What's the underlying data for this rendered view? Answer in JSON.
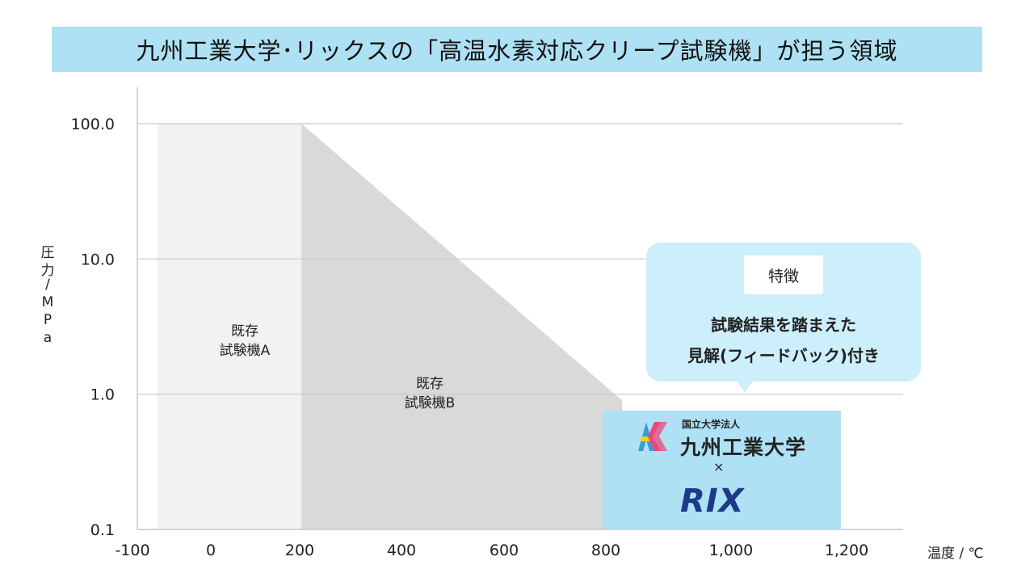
{
  "title": "九州工業大学･リックスの「高温水素対応クリープ試験機」が担う領域",
  "y_axis_label_chars": [
    "圧",
    "力",
    "/",
    "M",
    "P",
    "a"
  ],
  "x_axis_label": "温度 / ℃",
  "chart_data": {
    "type": "area",
    "title": "九州工業大学･リックスの「高温水素対応クリープ試験機」が担う領域",
    "xlabel": "温度 / ℃",
    "ylabel": "圧力/MPa",
    "xlim": [
      -100,
      1200
    ],
    "ylim": [
      0.1,
      100
    ],
    "y_scale": "log",
    "x_ticks": [
      -100,
      0,
      200,
      400,
      600,
      800,
      1000,
      1200
    ],
    "x_tick_labels": [
      "-100",
      "0",
      "200",
      "400",
      "600",
      "800",
      "1,000",
      "1,200"
    ],
    "y_ticks": [
      0.1,
      1,
      10,
      100
    ],
    "y_tick_labels": [
      "0.1",
      "1.0",
      "10.0",
      "100.0"
    ],
    "grid": "horizontal",
    "regions": [
      {
        "name": "既存試験機A",
        "label_lines": [
          "既存",
          "試験機A"
        ],
        "color": "#f2f2f2",
        "polygon": [
          [
            -40,
            0.1
          ],
          [
            200,
            0.1
          ],
          [
            200,
            100
          ],
          [
            -40,
            100
          ]
        ]
      },
      {
        "name": "既存試験機B",
        "label_lines": [
          "既存",
          "試験機B"
        ],
        "color": "#d9d9d9",
        "polygon": [
          [
            200,
            0.1
          ],
          [
            800,
            0.1
          ],
          [
            800,
            0.9
          ],
          [
            200,
            100
          ]
        ]
      },
      {
        "name": "九州工業大学 × RIX",
        "color": "#aee1f3",
        "polygon": [
          [
            800,
            0.1
          ],
          [
            1280,
            0.1
          ],
          [
            1280,
            1
          ],
          [
            800,
            1
          ]
        ]
      }
    ]
  },
  "callout": {
    "tag": "特徴",
    "line1": "試験結果を踏まえた",
    "line2": "見解(フィードバック)付き"
  },
  "logo": {
    "university_small": "国立大学法人",
    "university_name": "九州工業大学",
    "times": "×",
    "company": "RIX"
  },
  "colors": {
    "title_bg": "#aee1f3",
    "callout_bg": "#cdeefb",
    "rix_blue": "#1d3a8a"
  }
}
